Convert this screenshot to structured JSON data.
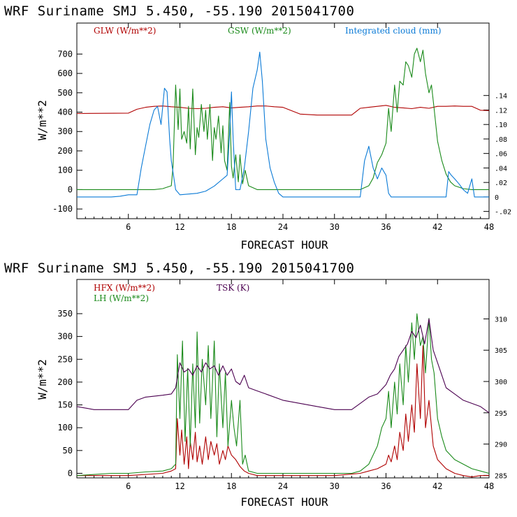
{
  "chart_data": [
    {
      "type": "line",
      "title": "WRF  Suriname SMJ   5.450, -55.190  2015041700",
      "xlabel": "FORECAST HOUR",
      "ylabel": "W/m**2",
      "xlim": [
        0,
        48
      ],
      "ylim": [
        -150,
        860
      ],
      "y2lim": [
        -0.03,
        0.24
      ],
      "xticks": [
        6,
        12,
        18,
        24,
        30,
        36,
        42,
        48
      ],
      "xtick_labels": [
        "6",
        "12",
        "18",
        "24",
        "30",
        "36",
        "42",
        "48"
      ],
      "yticks": [
        -100,
        0,
        100,
        200,
        300,
        400,
        500,
        600,
        700
      ],
      "ytick_labels": [
        "-100",
        "0",
        "100",
        "200",
        "300",
        "400",
        "500",
        "600",
        "700"
      ],
      "y2ticks": [
        -0.02,
        0,
        0.02,
        0.04,
        0.06,
        0.08,
        0.1,
        0.12,
        0.14
      ],
      "y2tick_labels": [
        "-.02",
        "0",
        ".02",
        ".04",
        ".06",
        ".08",
        ".10",
        ".12",
        ".14"
      ],
      "series": [
        {
          "name": "GLW (W/m**2)",
          "color": "#b00000",
          "axis": "left",
          "x": [
            0,
            6,
            7,
            8,
            9,
            10,
            11,
            12,
            13,
            14,
            15,
            16,
            17,
            18,
            19,
            20,
            21,
            22,
            23,
            24,
            26,
            28,
            30,
            32,
            33,
            34,
            35,
            36,
            37,
            38,
            39,
            40,
            41,
            42,
            43,
            44,
            45,
            46,
            47,
            48
          ],
          "y": [
            393,
            395,
            415,
            425,
            430,
            432,
            428,
            425,
            420,
            418,
            420,
            425,
            428,
            422,
            425,
            428,
            432,
            432,
            428,
            425,
            390,
            385,
            385,
            385,
            420,
            425,
            430,
            435,
            425,
            422,
            418,
            425,
            420,
            430,
            430,
            432,
            430,
            430,
            410,
            408
          ]
        },
        {
          "name": "GSW (W/m**2)",
          "color": "#1a8a1a",
          "axis": "left",
          "x": [
            0,
            9,
            10,
            11,
            11.2,
            11.5,
            11.8,
            12.0,
            12.2,
            12.5,
            12.8,
            13.0,
            13.2,
            13.5,
            13.8,
            14.0,
            14.2,
            14.5,
            14.8,
            15.0,
            15.2,
            15.5,
            15.8,
            16.0,
            16.2,
            16.5,
            16.8,
            17.0,
            17.2,
            17.5,
            17.8,
            18.0,
            18.2,
            18.5,
            18.8,
            19.0,
            19.3,
            19.6,
            20,
            21,
            22,
            23,
            24,
            30,
            33,
            34,
            34.5,
            35,
            35.5,
            36,
            36.3,
            36.6,
            37,
            37.3,
            37.6,
            38,
            38.3,
            38.6,
            39,
            39.3,
            39.6,
            40,
            40.3,
            40.6,
            41,
            41.3,
            41.6,
            42,
            42.5,
            43,
            43.5,
            44,
            45,
            46,
            47,
            48
          ],
          "y": [
            0,
            0,
            5,
            20,
            120,
            540,
            310,
            520,
            260,
            300,
            240,
            430,
            210,
            520,
            180,
            320,
            270,
            440,
            300,
            410,
            260,
            440,
            150,
            320,
            260,
            380,
            190,
            330,
            150,
            100,
            450,
            120,
            60,
            180,
            40,
            180,
            30,
            100,
            20,
            0,
            0,
            0,
            0,
            0,
            0,
            20,
            60,
            140,
            180,
            240,
            420,
            300,
            540,
            400,
            560,
            540,
            660,
            640,
            580,
            700,
            730,
            660,
            720,
            600,
            500,
            540,
            420,
            250,
            150,
            80,
            40,
            20,
            5,
            0,
            0,
            0
          ]
        },
        {
          "name": "Integrated cloud (mm)",
          "color": "#0a7ad6",
          "axis": "right",
          "x": [
            0,
            4,
            5,
            6,
            7,
            7.5,
            8,
            8.5,
            9,
            9.4,
            9.8,
            10.2,
            10.5,
            10.8,
            11,
            11.5,
            12,
            14,
            15,
            16,
            17,
            17.5,
            17.8,
            18.0,
            18.2,
            18.5,
            18.8,
            19,
            19.5,
            20,
            20.5,
            21,
            21.3,
            21.6,
            22,
            22.5,
            23,
            23.5,
            24,
            30,
            33,
            33.5,
            34,
            34.5,
            35,
            35.5,
            36,
            36.3,
            36.6,
            37,
            40,
            42,
            43,
            43.3,
            43.6,
            44,
            44.5,
            45,
            45.5,
            46,
            46.3,
            48
          ],
          "y": [
            0,
            0,
            0.001,
            0.003,
            0.003,
            0.04,
            0.07,
            0.1,
            0.12,
            0.125,
            0.1,
            0.15,
            0.145,
            0.08,
            0.05,
            0.01,
            0.003,
            0.005,
            0.008,
            0.015,
            0.025,
            0.03,
            0.09,
            0.145,
            0.08,
            0.01,
            0.01,
            0.01,
            0.04,
            0.09,
            0.15,
            0.175,
            0.2,
            0.16,
            0.08,
            0.04,
            0.02,
            0.005,
            0.0,
            0.0,
            0.0,
            0.05,
            0.07,
            0.04,
            0.025,
            0.04,
            0.03,
            0.005,
            0.0,
            0.0,
            0.0,
            0.0,
            0.0,
            0.035,
            0.03,
            0.025,
            0.018,
            0.01,
            0.005,
            0.025,
            0.0,
            0.0
          ]
        }
      ],
      "legend": "top"
    },
    {
      "type": "line",
      "title": "WRF  Suriname SMJ   5.450, -55.190  2015041700",
      "xlabel": "FORECAST HOUR",
      "ylabel": "W/m**2",
      "xlim": [
        0,
        48
      ],
      "ylim": [
        -10,
        425
      ],
      "y2lim": [
        284.6,
        316.3
      ],
      "xticks": [
        6,
        12,
        18,
        24,
        30,
        36,
        42,
        48
      ],
      "xtick_labels": [
        "6",
        "12",
        "18",
        "24",
        "30",
        "36",
        "42",
        "48"
      ],
      "yticks": [
        0,
        50,
        100,
        150,
        200,
        250,
        300,
        350
      ],
      "ytick_labels": [
        "0",
        "50",
        "100",
        "150",
        "200",
        "250",
        "300",
        "350"
      ],
      "y2ticks": [
        285,
        290,
        295,
        300,
        305,
        310
      ],
      "y2tick_labels": [
        "285",
        "290",
        "295",
        "300",
        "305",
        "310"
      ],
      "series": [
        {
          "name": "HFX (W/m**2)",
          "color": "#b00000",
          "axis": "left",
          "x": [
            0,
            6,
            10,
            11,
            11.5,
            11.7,
            12.0,
            12.2,
            12.5,
            12.8,
            13.0,
            13.2,
            13.5,
            13.8,
            14.0,
            14.3,
            14.6,
            15.0,
            15.3,
            15.6,
            16.0,
            16.3,
            16.6,
            17.0,
            17.3,
            17.6,
            18.0,
            18.5,
            19.0,
            19.5,
            20,
            21,
            24,
            30,
            33,
            34,
            35,
            36,
            36.3,
            36.6,
            37,
            37.3,
            37.6,
            38,
            38.3,
            38.6,
            39,
            39.3,
            39.6,
            40,
            40.3,
            40.6,
            41,
            41.5,
            42,
            43,
            44,
            45,
            46,
            47,
            48
          ],
          "y": [
            -5,
            -5,
            0,
            5,
            10,
            120,
            40,
            95,
            20,
            80,
            10,
            70,
            30,
            90,
            25,
            60,
            20,
            80,
            30,
            70,
            40,
            65,
            20,
            50,
            30,
            60,
            40,
            30,
            15,
            5,
            0,
            -5,
            -5,
            -5,
            0,
            5,
            10,
            20,
            40,
            25,
            60,
            30,
            90,
            50,
            130,
            70,
            150,
            90,
            240,
            120,
            280,
            100,
            160,
            60,
            30,
            10,
            0,
            -5,
            -8,
            -5,
            -5
          ]
        },
        {
          "name": "LH (W/m**2)",
          "color": "#1a8a1a",
          "axis": "left",
          "x": [
            0,
            4,
            6,
            8,
            10,
            11,
            11.5,
            11.7,
            12.0,
            12.3,
            12.6,
            12.9,
            13.2,
            13.5,
            13.8,
            14.0,
            14.3,
            14.6,
            15.0,
            15.3,
            15.6,
            16.0,
            16.3,
            16.6,
            17.0,
            17.3,
            17.6,
            18.0,
            18.3,
            18.6,
            19,
            19.3,
            19.6,
            20,
            21,
            22,
            24,
            30,
            32,
            33,
            34,
            35,
            35.5,
            36,
            36.3,
            36.6,
            37,
            37.3,
            37.6,
            38,
            38.3,
            38.6,
            39,
            39.3,
            39.6,
            40,
            40.3,
            40.6,
            41,
            41.3,
            41.6,
            42,
            42.5,
            43,
            44,
            45,
            46,
            47,
            48
          ],
          "y": [
            -5,
            0,
            0,
            3,
            5,
            10,
            20,
            260,
            120,
            290,
            70,
            230,
            60,
            240,
            100,
            310,
            110,
            250,
            150,
            280,
            120,
            290,
            80,
            240,
            100,
            220,
            60,
            160,
            100,
            60,
            160,
            20,
            40,
            5,
            0,
            0,
            0,
            0,
            0,
            5,
            20,
            60,
            100,
            120,
            180,
            100,
            200,
            130,
            240,
            150,
            280,
            200,
            330,
            250,
            350,
            280,
            300,
            220,
            340,
            250,
            220,
            120,
            80,
            50,
            30,
            20,
            10,
            5,
            0
          ]
        },
        {
          "name": "TSK (K)",
          "color": "#4b0050",
          "axis": "right",
          "x": [
            0,
            2,
            4,
            6,
            7,
            8,
            10,
            11,
            11.5,
            12,
            12.5,
            13,
            13.5,
            14,
            14.5,
            15,
            15.5,
            16,
            16.5,
            17,
            17.5,
            18,
            18.5,
            19,
            19.5,
            20,
            21,
            22,
            24,
            26,
            28,
            30,
            32,
            33,
            34,
            35,
            36,
            36.5,
            37,
            37.5,
            38,
            38.5,
            39,
            39.5,
            40,
            40.5,
            41,
            41.5,
            42,
            42.5,
            43,
            44,
            45,
            46,
            47,
            48
          ],
          "y": [
            296,
            295.5,
            295.5,
            295.5,
            297,
            297.5,
            297.8,
            298,
            299,
            303,
            301.5,
            302,
            301,
            302.5,
            301.5,
            303,
            302,
            302.5,
            301,
            302.5,
            301,
            302,
            300,
            299.5,
            301,
            299,
            298.5,
            298,
            297,
            296.5,
            296,
            295.5,
            295.5,
            296.5,
            297.5,
            298,
            299.5,
            301,
            302,
            304,
            305,
            306,
            308,
            307,
            309,
            306,
            310,
            305,
            303,
            301,
            299,
            298,
            297,
            296.5,
            296,
            295
          ]
        }
      ],
      "legend": "top"
    }
  ]
}
